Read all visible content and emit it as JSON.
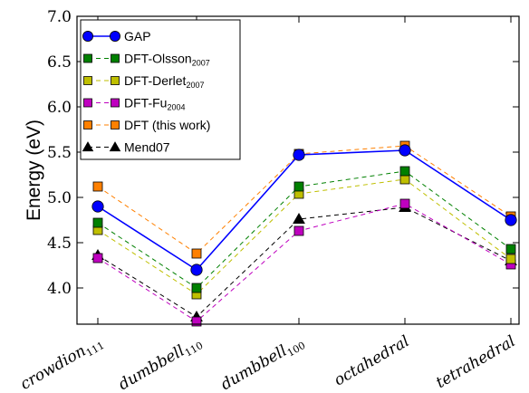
{
  "chart_data": {
    "type": "line",
    "ylabel": "Energy (eV)",
    "ylim": [
      3.6,
      7.0
    ],
    "yticks": [
      "4.0",
      "4.5",
      "5.0",
      "5.5",
      "6.0",
      "6.5",
      "7.0"
    ],
    "grid": false,
    "legend_position": "top-left",
    "categories": [
      {
        "base": "crowdion",
        "sub": "111"
      },
      {
        "base": "dumbbell",
        "sub": "110"
      },
      {
        "base": "dumbbell",
        "sub": "100"
      },
      {
        "base": "octahedral",
        "sub": ""
      },
      {
        "base": "tetrahedral",
        "sub": ""
      }
    ],
    "series": [
      {
        "name": "GAP",
        "sub": "",
        "color": "#0000ff",
        "marker": "circle",
        "dash": false,
        "values": [
          4.9,
          4.2,
          5.47,
          5.52,
          4.75
        ]
      },
      {
        "name": "DFT-Olsson",
        "sub": "2007",
        "color": "#008000",
        "marker": "square",
        "dash": true,
        "values": [
          4.72,
          4.0,
          5.12,
          5.29,
          4.43
        ]
      },
      {
        "name": "DFT-Derlet",
        "sub": "2007",
        "color": "#bfbf00",
        "marker": "square",
        "dash": true,
        "values": [
          4.64,
          3.93,
          5.04,
          5.2,
          4.32
        ]
      },
      {
        "name": "DFT-Fu",
        "sub": "2004",
        "color": "#bf00bf",
        "marker": "square",
        "dash": true,
        "values": [
          4.33,
          3.63,
          4.63,
          4.93,
          4.26
        ]
      },
      {
        "name": "DFT (this work)",
        "sub": "",
        "color": "#ff8000",
        "marker": "square",
        "dash": true,
        "values": [
          5.12,
          4.38,
          5.48,
          5.57,
          4.79
        ]
      },
      {
        "name": "Mend07",
        "sub": "",
        "color": "#000000",
        "marker": "triangle",
        "dash": true,
        "values": [
          4.36,
          3.68,
          4.76,
          4.89,
          4.3
        ]
      }
    ]
  }
}
